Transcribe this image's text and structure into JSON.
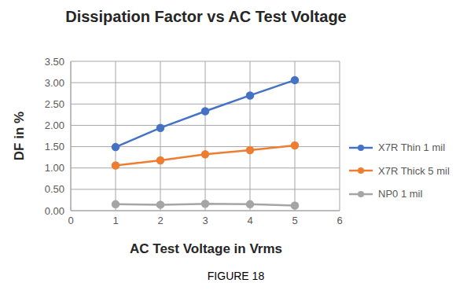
{
  "chart_data": {
    "type": "line",
    "title": "Dissipation Factor vs AC Test Voltage",
    "x_label": "AC Test Voltage in Vrms",
    "y_label": "DF in %",
    "annotations": [
      "FIGURE 18"
    ],
    "x": [
      1,
      2,
      3,
      4,
      5
    ],
    "series": [
      {
        "name": "X7R Thin 1 mil",
        "color": "#4472c4",
        "values": [
          1.49,
          1.94,
          2.33,
          2.7,
          3.06
        ]
      },
      {
        "name": "X7R Thick 5 mil",
        "color": "#ed7d31",
        "values": [
          1.06,
          1.18,
          1.32,
          1.42,
          1.53
        ]
      },
      {
        "name": "NP0 1 mil",
        "color": "#a5a5a5",
        "values": [
          0.15,
          0.14,
          0.16,
          0.15,
          0.12
        ]
      }
    ],
    "xlim": [
      0,
      6
    ],
    "xticks": [
      0,
      1,
      2,
      3,
      4,
      5,
      6
    ],
    "ylim": [
      0,
      3.5
    ],
    "yticks": [
      {
        "value": 0,
        "label": "0.00"
      },
      {
        "value": 0.5,
        "label": "0.50"
      },
      {
        "value": 1,
        "label": "1.00"
      },
      {
        "value": 1.5,
        "label": "1.50"
      },
      {
        "value": 2,
        "label": "2.00"
      },
      {
        "value": 2.5,
        "label": "2.50"
      },
      {
        "value": 3,
        "label": "3.00"
      },
      {
        "value": 3.5,
        "label": "3.50"
      }
    ],
    "grid": true,
    "legend": "right",
    "marker": "circle"
  }
}
